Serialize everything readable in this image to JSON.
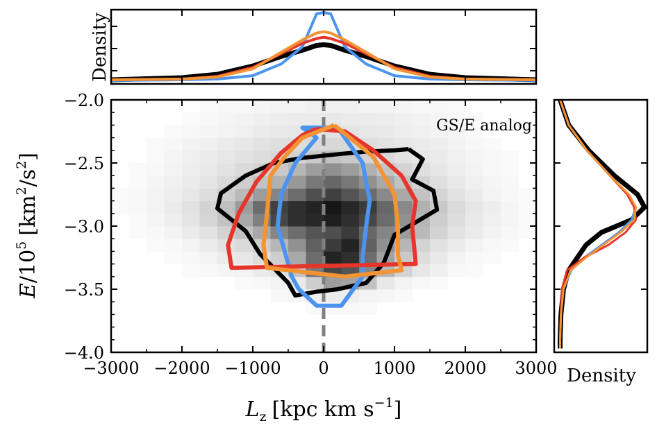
{
  "chart_data": [
    {
      "panel": "main",
      "type": "heatmap",
      "annotation": "GS/E analog",
      "xlabel_main": "L",
      "xlabel_sub": "z",
      "xlabel_unit_pre": "[kpc km s",
      "xlabel_unit_sup": "−1",
      "xlabel_unit_post": "]",
      "ylabel_main": "E",
      "ylabel_div": "/10",
      "ylabel_sup": "5",
      "ylabel_unit_pre": "[km",
      "ylabel_unit_sup": "2",
      "ylabel_unit_mid": "/s",
      "ylabel_unit_sup2": "2",
      "ylabel_unit_post": "]",
      "xlim": [
        -3000,
        3000
      ],
      "ylim": [
        -4.0,
        -2.0
      ],
      "xticks": [
        -3000,
        -2000,
        -1000,
        0,
        1000,
        2000,
        3000
      ],
      "xtick_labels": [
        "−3000",
        "−2000",
        "−1000",
        "0",
        "1000",
        "2000",
        "3000"
      ],
      "yticks": [
        -4.0,
        -3.5,
        -3.0,
        -2.5,
        -2.0
      ],
      "ytick_labels": [
        "−4.0",
        "−3.5",
        "−3.0",
        "−2.5",
        "−2.0"
      ],
      "vline_x": 0,
      "heatmap": {
        "x_bins_start": -3000,
        "x_bin_width": 250,
        "y_bins_start": -3.7,
        "y_bin_width": 0.1,
        "rows": [
          [
            0,
            0,
            0,
            0,
            0,
            0,
            0,
            0,
            0,
            0,
            0,
            2,
            3,
            3,
            2,
            0,
            0,
            0,
            0,
            0,
            0,
            0,
            0,
            0
          ],
          [
            0,
            0,
            0,
            0,
            0,
            0,
            0,
            0,
            0,
            3,
            4,
            6,
            8,
            7,
            5,
            4,
            2,
            0,
            0,
            0,
            0,
            0,
            0,
            0
          ],
          [
            0,
            0,
            0,
            0,
            0,
            0,
            0,
            2,
            3,
            5,
            9,
            20,
            40,
            38,
            25,
            10,
            5,
            3,
            2,
            0,
            0,
            0,
            0,
            0
          ],
          [
            0,
            0,
            0,
            0,
            2,
            3,
            4,
            5,
            8,
            12,
            25,
            55,
            75,
            70,
            50,
            30,
            18,
            10,
            6,
            3,
            2,
            0,
            0,
            0
          ],
          [
            0,
            0,
            0,
            2,
            3,
            5,
            8,
            10,
            14,
            20,
            35,
            60,
            90,
            85,
            60,
            38,
            22,
            14,
            9,
            5,
            3,
            2,
            0,
            0
          ],
          [
            0,
            0,
            2,
            3,
            5,
            8,
            12,
            15,
            20,
            30,
            45,
            65,
            80,
            90,
            65,
            45,
            30,
            18,
            12,
            8,
            5,
            3,
            2,
            0
          ],
          [
            0,
            2,
            3,
            5,
            8,
            12,
            18,
            25,
            35,
            50,
            60,
            70,
            72,
            80,
            62,
            50,
            40,
            28,
            18,
            12,
            8,
            5,
            3,
            2
          ],
          [
            0,
            2,
            4,
            7,
            11,
            17,
            25,
            35,
            52,
            75,
            85,
            88,
            92,
            85,
            75,
            60,
            45,
            30,
            20,
            14,
            9,
            6,
            4,
            2
          ],
          [
            2,
            3,
            5,
            8,
            12,
            18,
            26,
            40,
            60,
            78,
            85,
            90,
            95,
            88,
            80,
            62,
            48,
            32,
            22,
            15,
            10,
            7,
            4,
            2
          ],
          [
            2,
            3,
            5,
            7,
            10,
            14,
            20,
            28,
            40,
            50,
            60,
            72,
            78,
            70,
            60,
            48,
            35,
            25,
            17,
            12,
            8,
            5,
            3,
            2
          ],
          [
            0,
            2,
            4,
            6,
            8,
            11,
            15,
            20,
            25,
            32,
            42,
            55,
            62,
            55,
            45,
            35,
            25,
            18,
            13,
            9,
            6,
            4,
            3,
            0
          ],
          [
            0,
            2,
            3,
            5,
            7,
            9,
            12,
            15,
            18,
            22,
            30,
            40,
            45,
            40,
            32,
            24,
            18,
            13,
            10,
            7,
            5,
            3,
            2,
            0
          ],
          [
            0,
            0,
            2,
            4,
            6,
            8,
            10,
            12,
            14,
            16,
            18,
            22,
            25,
            22,
            18,
            15,
            12,
            10,
            8,
            6,
            4,
            3,
            2,
            0
          ],
          [
            0,
            0,
            2,
            3,
            5,
            6,
            8,
            10,
            12,
            13,
            14,
            15,
            16,
            15,
            14,
            12,
            10,
            8,
            7,
            5,
            3,
            2,
            0,
            0
          ],
          [
            0,
            0,
            0,
            2,
            3,
            4,
            5,
            6,
            8,
            9,
            10,
            11,
            12,
            11,
            10,
            9,
            7,
            6,
            5,
            4,
            2,
            0,
            0,
            0
          ],
          [
            0,
            0,
            0,
            0,
            2,
            3,
            4,
            5,
            6,
            7,
            8,
            8,
            9,
            8,
            8,
            7,
            6,
            5,
            4,
            3,
            2,
            0,
            0,
            0
          ],
          [
            0,
            0,
            0,
            0,
            0,
            2,
            3,
            3,
            4,
            5,
            5,
            6,
            6,
            6,
            5,
            5,
            4,
            3,
            3,
            2,
            0,
            0,
            0,
            0
          ]
        ]
      },
      "series": [
        {
          "color": "#000000",
          "x": [
            1200,
            1400,
            1250,
            1550,
            1600,
            1000,
            850,
            600,
            200,
            -100,
            -400,
            -500,
            -900,
            -1100,
            -1500,
            -1450,
            -1100,
            -700,
            -300,
            200,
            600,
            1000,
            1200
          ],
          "y": [
            -2.39,
            -2.47,
            -2.63,
            -2.72,
            -2.87,
            -3.07,
            -3.29,
            -3.45,
            -3.5,
            -3.52,
            -3.55,
            -3.45,
            -3.22,
            -3.04,
            -2.86,
            -2.74,
            -2.6,
            -2.5,
            -2.46,
            -2.43,
            -2.41,
            -2.4,
            -2.39
          ]
        },
        {
          "color": "#4d94ef",
          "x": [
            200,
            550,
            650,
            600,
            550,
            550,
            250,
            -100,
            -350,
            -450,
            -650,
            -600,
            -400,
            -100,
            -300,
            200
          ],
          "y": [
            -2.22,
            -2.5,
            -2.8,
            -3.0,
            -3.25,
            -3.4,
            -3.63,
            -3.63,
            -3.5,
            -3.4,
            -3.0,
            -2.75,
            -2.5,
            -2.3,
            -2.22,
            -2.22
          ]
        },
        {
          "color": "#e6362b",
          "x": [
            -100,
            300,
            700,
            1100,
            1300,
            1250,
            1300,
            -1300,
            -1350,
            -1200,
            -950,
            -600,
            -300,
            -100
          ],
          "y": [
            -2.23,
            -2.25,
            -2.4,
            -2.6,
            -2.8,
            -3.0,
            -3.3,
            -3.33,
            -3.15,
            -2.9,
            -2.65,
            -2.42,
            -2.28,
            -2.23
          ]
        },
        {
          "color": "#f39434",
          "x": [
            150,
            700,
            1000,
            1050,
            1050,
            1100,
            300,
            -800,
            -850,
            -800,
            -750,
            -550,
            -300,
            150
          ],
          "y": [
            -2.2,
            -2.45,
            -2.75,
            -3.0,
            -3.23,
            -3.35,
            -3.4,
            -3.33,
            -3.15,
            -2.9,
            -2.6,
            -2.45,
            -2.3,
            -2.2
          ]
        }
      ]
    },
    {
      "panel": "top",
      "type": "line",
      "ylabel": "Density",
      "x": [
        -3000,
        -2000,
        -1500,
        -1000,
        -600,
        -300,
        -100,
        0,
        100,
        300,
        600,
        1000,
        1500,
        2000,
        3000
      ],
      "series": [
        {
          "color": "#000000",
          "values": [
            0.02,
            0.05,
            0.1,
            0.22,
            0.36,
            0.45,
            0.52,
            0.53,
            0.52,
            0.45,
            0.36,
            0.22,
            0.1,
            0.05,
            0.02
          ]
        },
        {
          "color": "#4d94ef",
          "values": [
            0.01,
            0.02,
            0.03,
            0.08,
            0.25,
            0.5,
            0.98,
            1.0,
            0.98,
            0.5,
            0.25,
            0.08,
            0.03,
            0.02,
            0.01
          ]
        },
        {
          "color": "#e6362b",
          "values": [
            0.02,
            0.03,
            0.07,
            0.2,
            0.4,
            0.55,
            0.62,
            0.64,
            0.62,
            0.55,
            0.4,
            0.2,
            0.07,
            0.03,
            0.02
          ]
        },
        {
          "color": "#f39434",
          "values": [
            0.02,
            0.03,
            0.06,
            0.18,
            0.42,
            0.6,
            0.7,
            0.72,
            0.7,
            0.6,
            0.42,
            0.18,
            0.06,
            0.03,
            0.02
          ]
        }
      ]
    },
    {
      "panel": "right",
      "type": "line",
      "xlabel": "Density",
      "y": [
        -2.0,
        -2.2,
        -2.4,
        -2.6,
        -2.75,
        -2.85,
        -2.95,
        -3.05,
        -3.15,
        -3.25,
        -3.35,
        -3.5,
        -3.7,
        -3.9,
        -3.97
      ],
      "series": [
        {
          "color": "#000000",
          "values": [
            0.02,
            0.12,
            0.35,
            0.65,
            0.92,
            1.0,
            0.85,
            0.5,
            0.32,
            0.22,
            0.12,
            0.06,
            0.03,
            0.02,
            0.02
          ]
        },
        {
          "color": "#4d94ef",
          "values": [
            0.02,
            0.12,
            0.33,
            0.6,
            0.8,
            0.9,
            0.85,
            0.7,
            0.5,
            0.3,
            0.15,
            0.06,
            0.03,
            0.02,
            0.02
          ]
        },
        {
          "color": "#e6362b",
          "values": [
            0.02,
            0.12,
            0.33,
            0.6,
            0.8,
            0.88,
            0.9,
            0.78,
            0.58,
            0.3,
            0.1,
            0.04,
            0.03,
            0.02,
            0.02
          ]
        },
        {
          "color": "#f39434",
          "values": [
            0.02,
            0.12,
            0.33,
            0.6,
            0.82,
            0.9,
            0.88,
            0.72,
            0.52,
            0.32,
            0.14,
            0.06,
            0.03,
            0.02,
            0.02
          ]
        }
      ]
    }
  ]
}
